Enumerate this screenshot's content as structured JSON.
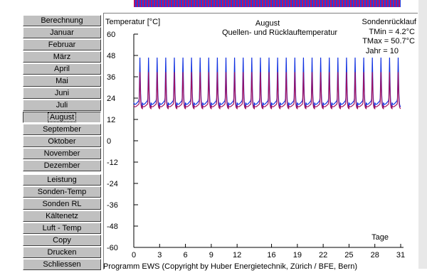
{
  "sidebar": {
    "months_buttons": [
      {
        "label": "Berechnung"
      },
      {
        "label": "Januar"
      },
      {
        "label": "Februar"
      },
      {
        "label": "März"
      },
      {
        "label": "April"
      },
      {
        "label": "Mai"
      },
      {
        "label": "Juni"
      },
      {
        "label": "Juli"
      },
      {
        "label": "August",
        "selected": true
      },
      {
        "label": "September"
      },
      {
        "label": "Oktober"
      },
      {
        "label": "November"
      },
      {
        "label": "Dezember"
      }
    ],
    "tool_buttons": [
      {
        "label": "Leistung"
      },
      {
        "label": "Sonden-Temp"
      },
      {
        "label": "Sonden RL"
      },
      {
        "label": "Kältenetz"
      },
      {
        "label": "Luft - Temp"
      },
      {
        "label": "Copy"
      },
      {
        "label": "Drucken"
      },
      {
        "label": "Schliessen"
      }
    ]
  },
  "chart": {
    "ylabel": "Temperatur [°C]",
    "title_line1": "August",
    "title_line2": "Quellen- und Rücklauftemperatur",
    "info_title": "Sondenrücklauf",
    "tmin": "TMin  = 4.2°C",
    "tmax": "TMax = 50.7°C",
    "jahr": "Jahr   = 10",
    "xlabel": "Tage"
  },
  "footer": {
    "text": "Programm EWS  (Copyright by Huber Energietechnik, Zürich / BFE, Bern)"
  },
  "colors": {
    "source_line": "#1030e0",
    "return_line": "#a01060"
  },
  "chart_data": {
    "type": "line",
    "xlabel": "Tage",
    "ylabel": "Temperatur [°C]",
    "xlim": [
      0,
      31
    ],
    "ylim": [
      -60,
      60
    ],
    "x_ticks": [
      0,
      3,
      6,
      9,
      12,
      16,
      19,
      22,
      25,
      28,
      31
    ],
    "y_ticks": [
      60,
      48,
      36,
      24,
      12,
      0,
      -12,
      -24,
      -36,
      -48,
      -60
    ],
    "days": 31,
    "series": [
      {
        "profile_per_day": {
          "base": 19,
          "peak": 50
        }
      },
      {
        "profile_per_day": {
          "base": 18,
          "peak": 41
        }
      }
    ]
  }
}
